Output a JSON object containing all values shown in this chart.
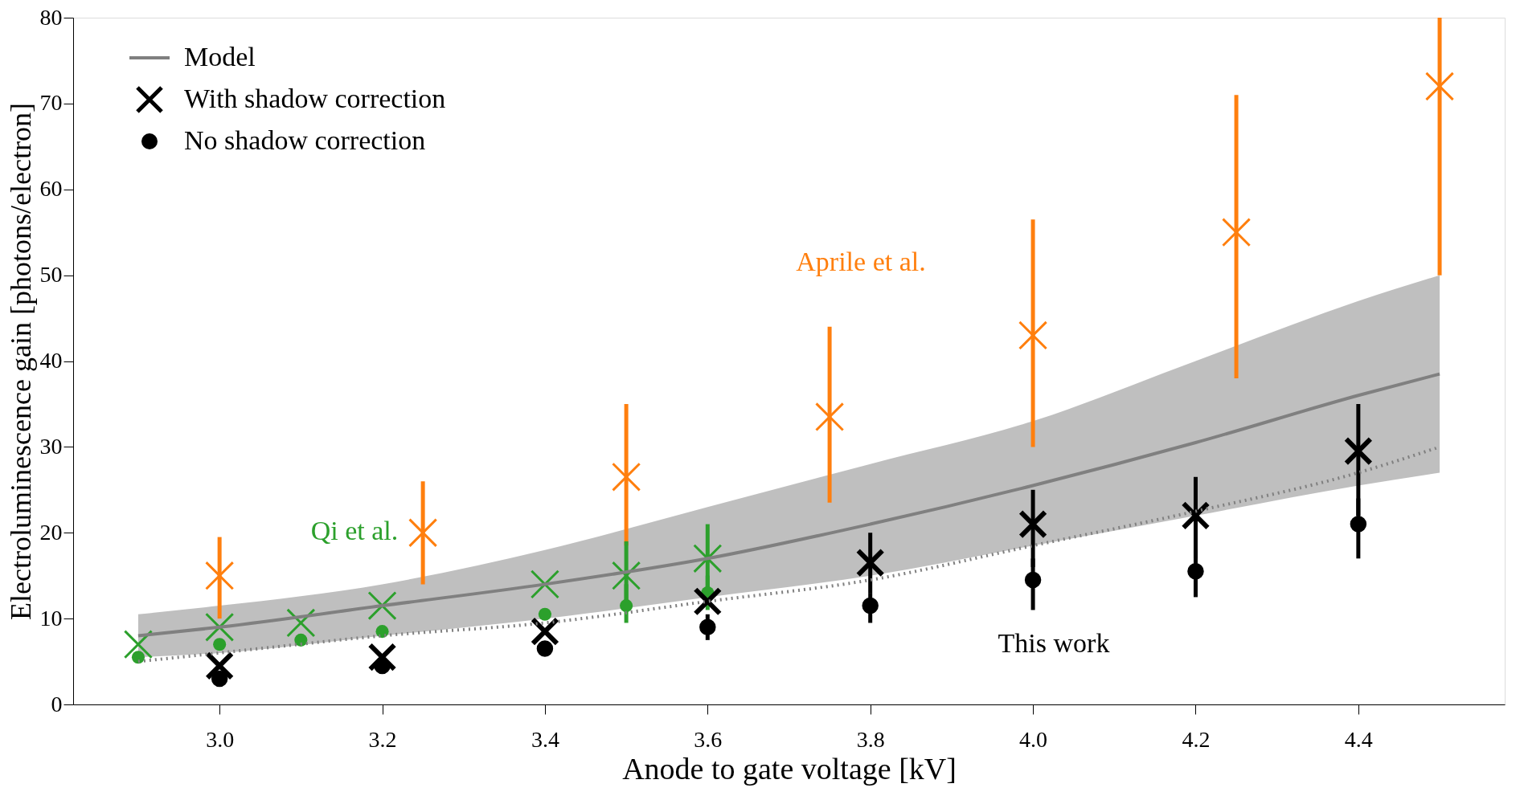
{
  "chart_data": {
    "type": "scatter",
    "xlabel": "Anode to gate voltage [kV]",
    "ylabel": "Electroluminescence gain [photons/electron]",
    "xlim": [
      2.82,
      4.58
    ],
    "ylim": [
      0,
      80
    ],
    "xticks": [
      {
        "value": 3.0,
        "label": "3.0"
      },
      {
        "value": 3.2,
        "label": "3.2"
      },
      {
        "value": 3.4,
        "label": "3.4"
      },
      {
        "value": 3.6,
        "label": "3.6"
      },
      {
        "value": 3.8,
        "label": "3.8"
      },
      {
        "value": 4.0,
        "label": "4.0"
      },
      {
        "value": 4.2,
        "label": "4.2"
      },
      {
        "value": 4.4,
        "label": "4.4"
      }
    ],
    "yticks": [
      0,
      10,
      20,
      30,
      40,
      50,
      60,
      70,
      80
    ],
    "grid": false,
    "legend": "top left",
    "series": [
      {
        "type": "line",
        "name": "Model",
        "color": "#808080",
        "line_style": "solid",
        "marker": "none",
        "x": [
          2.9,
          3.0,
          3.2,
          3.4,
          3.6,
          3.8,
          4.0,
          4.2,
          4.4,
          4.5
        ],
        "values": [
          8,
          9,
          11.5,
          14,
          17,
          21,
          25.5,
          30.5,
          36,
          38.5
        ],
        "lower": [
          5.5,
          6,
          8,
          10,
          12.5,
          15,
          18.5,
          22,
          25.5,
          27
        ],
        "upper": [
          10.5,
          11.5,
          14,
          18,
          23,
          28,
          33,
          40,
          47,
          50
        ]
      },
      {
        "type": "line",
        "color": "#808080",
        "line_style": "dotted",
        "marker": "none",
        "x": [
          2.9,
          3.0,
          3.2,
          3.4,
          3.6,
          3.8,
          4.0,
          4.2,
          4.4,
          4.5
        ],
        "values": [
          5,
          6,
          8,
          9.5,
          12,
          14.5,
          18.5,
          22.5,
          27,
          30
        ]
      },
      {
        "color": "#ff7f0e",
        "marker": "cross",
        "x": [
          3.0,
          3.25,
          3.5,
          3.75,
          4.0,
          4.25,
          4.5
        ],
        "values": [
          15,
          20,
          26.5,
          33.5,
          43,
          55,
          72
        ],
        "errors": [
          [
            10,
            19.5
          ],
          [
            14,
            26
          ],
          [
            18.5,
            35
          ],
          [
            23.5,
            44
          ],
          [
            30,
            56.5
          ],
          [
            38,
            71
          ],
          [
            50,
            80
          ]
        ]
      },
      {
        "color": "#2ca02c",
        "marker": "cross",
        "x": [
          2.9,
          3.0,
          3.1,
          3.2,
          3.4,
          3.5,
          3.6
        ],
        "values": [
          7,
          9,
          9.5,
          11.5,
          14,
          15,
          17
        ],
        "errors": [
          null,
          null,
          null,
          null,
          null,
          [
            11,
            19
          ],
          [
            13,
            21
          ]
        ]
      },
      {
        "color": "#2ca02c",
        "marker": "circle",
        "x": [
          2.9,
          3.0,
          3.1,
          3.2,
          3.4,
          3.5,
          3.6
        ],
        "values": [
          5.5,
          7,
          7.5,
          8.5,
          10.5,
          11.5,
          13
        ],
        "errors": [
          null,
          null,
          null,
          null,
          null,
          [
            9.5,
            14
          ],
          [
            11,
            15
          ]
        ]
      },
      {
        "name": "With shadow correction",
        "color": "#000000",
        "marker": "cross",
        "x": [
          3.0,
          3.2,
          3.4,
          3.6,
          3.8,
          4.0,
          4.2,
          4.4
        ],
        "values": [
          4.5,
          5.5,
          8.5,
          12,
          16.5,
          21,
          22,
          29.5
        ],
        "errors": [
          null,
          null,
          null,
          null,
          [
            13,
            20
          ],
          [
            16,
            25
          ],
          [
            17,
            26.5
          ],
          [
            22,
            35
          ]
        ]
      },
      {
        "name": "No shadow correction",
        "color": "#000000",
        "marker": "circle",
        "x": [
          3.0,
          3.2,
          3.4,
          3.6,
          3.8,
          4.0,
          4.2,
          4.4
        ],
        "values": [
          3,
          4.5,
          6.5,
          9,
          11.5,
          14.5,
          15.5,
          21
        ],
        "errors": [
          null,
          null,
          null,
          [
            7.5,
            10.5
          ],
          [
            9.5,
            13
          ],
          [
            11,
            17
          ],
          [
            12.5,
            18
          ],
          [
            17,
            24
          ]
        ]
      }
    ],
    "annotations": [
      "Aprile et al.",
      "Qi et al.",
      "This work"
    ]
  }
}
